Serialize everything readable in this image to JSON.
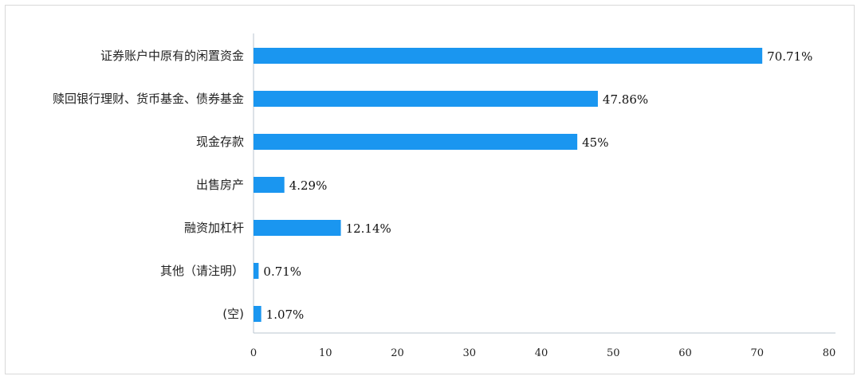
{
  "chart_data": {
    "type": "bar",
    "orientation": "horizontal",
    "categories": [
      "证券账户中原有的闲置资金",
      "赎回银行理财、货币基金、债券基金",
      "现金存款",
      "出售房产",
      "融资加杠杆",
      "其他（请注明）",
      "(空)"
    ],
    "values": [
      70.71,
      47.86,
      45,
      4.29,
      12.14,
      0.71,
      1.07
    ],
    "value_labels": [
      "70.71%",
      "47.86%",
      "45%",
      "4.29%",
      "12.14%",
      "0.71%",
      "1.07%"
    ],
    "x_ticks": [
      "0",
      "10",
      "20",
      "30",
      "40",
      "50",
      "60",
      "70",
      "80"
    ],
    "xlim": [
      0,
      80
    ],
    "bar_color": "#1a96f0",
    "grid": false,
    "legend": "none"
  }
}
